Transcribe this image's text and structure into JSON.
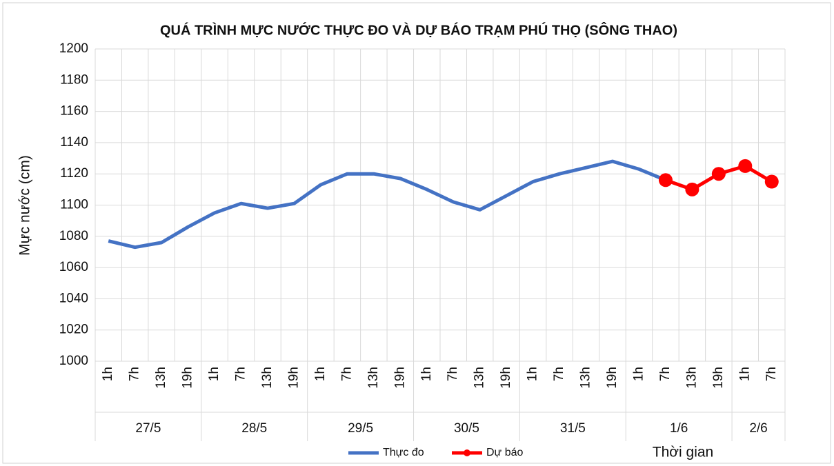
{
  "chart_data": {
    "type": "line",
    "title": "QUÁ TRÌNH MỰC NƯỚC THỰC ĐO VÀ DỰ BÁO TRẠM PHÚ THỌ (SÔNG THAO)",
    "y_label": "Mực nước (cm)",
    "x_label": "Thời gian",
    "groups": [
      {
        "name": "27/5",
        "categories": [
          "1h",
          "7h",
          "13h",
          "19h"
        ]
      },
      {
        "name": "28/5",
        "categories": [
          "1h",
          "7h",
          "13h",
          "19h"
        ]
      },
      {
        "name": "29/5",
        "categories": [
          "1h",
          "7h",
          "13h",
          "19h"
        ]
      },
      {
        "name": "30/5",
        "categories": [
          "1h",
          "7h",
          "13h",
          "19h"
        ]
      },
      {
        "name": "31/5",
        "categories": [
          "1h",
          "7h",
          "13h",
          "19h"
        ]
      },
      {
        "name": "1/6",
        "categories": [
          "1h",
          "7h",
          "13h",
          "19h"
        ]
      },
      {
        "name": "2/6",
        "categories": [
          "1h",
          "7h"
        ]
      }
    ],
    "series": [
      {
        "name": "Thực đo",
        "color": "#4472c4",
        "markers": false,
        "values": [
          1077,
          1073,
          1076,
          1086,
          1095,
          1101,
          1098,
          1101,
          1113,
          1120,
          1120,
          1117,
          1110,
          1102,
          1097,
          1106,
          1115,
          1120,
          1124,
          1128,
          1123,
          1116,
          null,
          null,
          null,
          null
        ]
      },
      {
        "name": "Dự báo",
        "color": "#ff0000",
        "markers": true,
        "values": [
          null,
          null,
          null,
          null,
          null,
          null,
          null,
          null,
          null,
          null,
          null,
          null,
          null,
          null,
          null,
          null,
          null,
          null,
          null,
          null,
          null,
          1116,
          1110,
          1120,
          1125,
          1115
        ]
      }
    ],
    "ylim": [
      1000,
      1200
    ],
    "yticks": [
      1000,
      1020,
      1040,
      1060,
      1080,
      1100,
      1120,
      1140,
      1160,
      1180,
      1200
    ],
    "grid": true
  }
}
